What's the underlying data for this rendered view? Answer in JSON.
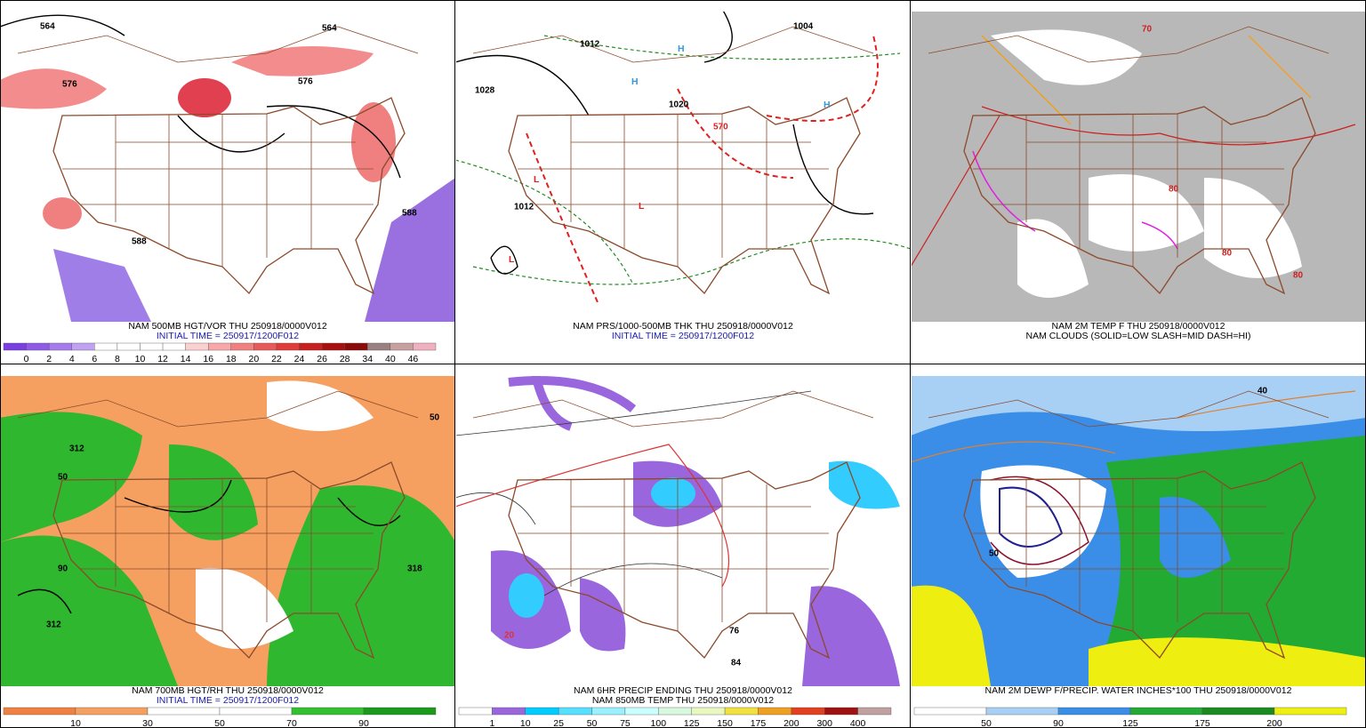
{
  "panels": [
    {
      "caption": [
        {
          "text": "NAM 500MB HGT/VOR THU 250918/0000V012",
          "color": "#000000"
        },
        {
          "text": "INITIAL TIME = 250917/1200F012",
          "color": "#1a1ab0"
        }
      ],
      "colorbar": {
        "labels": [
          0,
          2,
          4,
          6,
          8,
          10,
          12,
          14,
          16,
          18,
          20,
          22,
          24,
          26,
          28,
          34,
          40,
          46
        ],
        "colors": [
          "#7a3fe0",
          "#8f5ae6",
          "#a67bec",
          "#c0a2f2",
          "#ffffff",
          "#ffffff",
          "#ffffff",
          "#ffffff",
          "#fbd0d0",
          "#f8a8a8",
          "#f08080",
          "#e85a5a",
          "#e03a3a",
          "#c82020",
          "#a81010",
          "#8b0a0a",
          "#9a8080",
          "#c8a0a0",
          "#f0b0c0"
        ]
      },
      "map_labels": [
        "564",
        "576",
        "576",
        "564",
        "588",
        "588"
      ]
    },
    {
      "caption": [
        {
          "text": "NAM PRS/1000-500MB THK THU 250918/0000V012",
          "color": "#000000"
        },
        {
          "text": "INITIAL TIME = 250917/1200F012",
          "color": "#1a1ab0"
        }
      ],
      "map_labels": [
        "1028",
        "1012",
        "1020",
        "1012",
        "1004",
        "570",
        "L",
        "H"
      ]
    },
    {
      "caption": [
        {
          "text": "NAM 2M TEMP F THU 250918/0000V012",
          "color": "#000000"
        },
        {
          "text": "NAM CLOUDS (SOLID=LOW SLASH=MID DASH=HI)",
          "color": "#000000"
        }
      ],
      "map_labels": [
        "70",
        "80"
      ]
    },
    {
      "caption": [
        {
          "text": "NAM 700MB HGT/RH THU 250918/0000V012",
          "color": "#000000"
        },
        {
          "text": "INITIAL TIME = 250917/1200F012",
          "color": "#1a1ab0"
        }
      ],
      "colorbar": {
        "labels": [
          10,
          30,
          50,
          70,
          90
        ],
        "colors": [
          "#f08040",
          "#f5a060",
          "#ffffff",
          "#ffffff",
          "#30c030",
          "#1a9a1a"
        ]
      },
      "map_labels": [
        "50",
        "312",
        "90",
        "318"
      ]
    },
    {
      "caption": [
        {
          "text": "NAM 6HR PRECIP ENDING THU 250918/0000V012",
          "color": "#000000"
        },
        {
          "text": "NAM 850MB TEMP THU 250918/0000V012",
          "color": "#000000"
        }
      ],
      "colorbar": {
        "labels": [
          1,
          10,
          25,
          50,
          75,
          100,
          125,
          150,
          175,
          200,
          300,
          400
        ],
        "colors": [
          "#ffffff",
          "#9966dd",
          "#00ccff",
          "#55e0ff",
          "#99f0ff",
          "#ccffff",
          "#d8f8e0",
          "#e8f8c0",
          "#f0e040",
          "#f0a020",
          "#e04020",
          "#a01010",
          "#c0a0a0"
        ]
      },
      "map_labels": [
        "84",
        "76",
        "20"
      ]
    },
    {
      "caption": [
        {
          "text": "NAM 2M DEWP F/PRECIP. WATER INCHES*100 THU 250918/0000V012",
          "color": "#000000"
        }
      ],
      "colorbar": {
        "labels": [
          50,
          90,
          125,
          175,
          200
        ],
        "colors": [
          "#ffffff",
          "#a8d0f5",
          "#3a8ee8",
          "#22aa33",
          "#1a8a20",
          "#eeee10"
        ]
      },
      "map_labels": [
        "50",
        "40"
      ]
    }
  ]
}
